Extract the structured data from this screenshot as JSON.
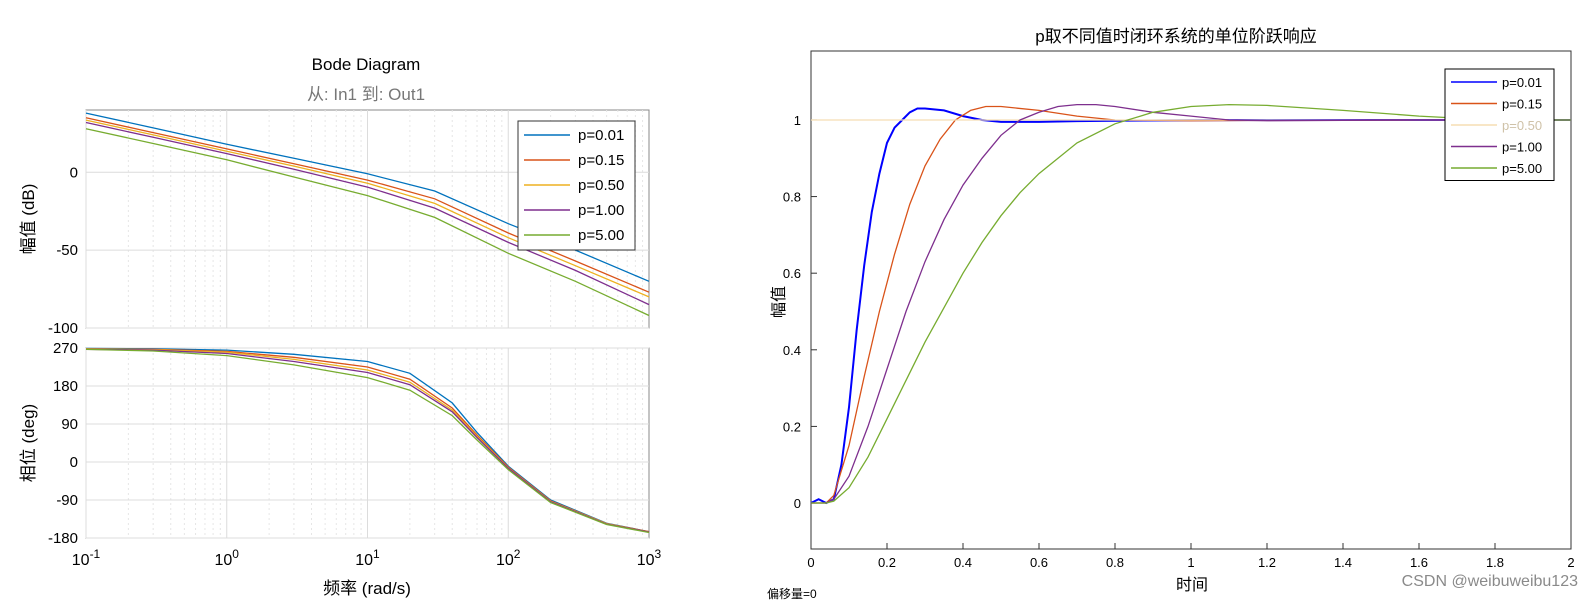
{
  "bode": {
    "title": "Bode Diagram",
    "subtitle": "从: In1  到: Out1",
    "xlabel": "频率  (rad/s)",
    "mag_ylabel": "幅值 (dB)",
    "phase_ylabel": "相位 (deg)",
    "x_ticks": [
      {
        "base": "10",
        "exp": "-1"
      },
      {
        "base": "10",
        "exp": "0"
      },
      {
        "base": "10",
        "exp": "1"
      },
      {
        "base": "10",
        "exp": "2"
      },
      {
        "base": "10",
        "exp": "3"
      }
    ]
  },
  "step": {
    "title": "p取不同值时闭环系统的单位阶跃响应",
    "xlabel": "时间",
    "ylabel": "幅值",
    "note": "偏移量=0"
  },
  "watermark": "CSDN @weibuweibu123",
  "chart_data": [
    {
      "type": "line",
      "title": "Bode Diagram",
      "subtitle": "从: In1  到: Out1",
      "panel": "magnitude",
      "xlabel": "频率  (rad/s)",
      "ylabel": "幅值 (dB)",
      "xscale": "log",
      "xlim": [
        0.1,
        1000
      ],
      "ylim": [
        -100,
        40
      ],
      "yticks": [
        -100,
        -50,
        0
      ],
      "grid": true,
      "legend_position": "top-right",
      "series": [
        {
          "name": "p=0.01",
          "color": "#0072BD",
          "x": [
            0.1,
            0.3,
            1,
            3,
            10,
            30,
            100,
            300,
            1000
          ],
          "y": [
            38,
            28.5,
            18,
            9,
            -1,
            -12,
            -33,
            -50,
            -70
          ]
        },
        {
          "name": "p=0.15",
          "color": "#D95319",
          "x": [
            0.1,
            0.3,
            1,
            3,
            10,
            30,
            100,
            300,
            1000
          ],
          "y": [
            35,
            25.5,
            15,
            5.5,
            -5,
            -17,
            -39,
            -57,
            -77
          ]
        },
        {
          "name": "p=0.50",
          "color": "#EDB120",
          "x": [
            0.1,
            0.3,
            1,
            3,
            10,
            30,
            100,
            300,
            1000
          ],
          "y": [
            33.5,
            24,
            13.5,
            4,
            -7,
            -20,
            -42,
            -60,
            -80
          ]
        },
        {
          "name": "p=1.00",
          "color": "#7E2F8E",
          "x": [
            0.1,
            0.3,
            1,
            3,
            10,
            30,
            100,
            300,
            1000
          ],
          "y": [
            32,
            22.5,
            12,
            2,
            -9.5,
            -23,
            -45,
            -63,
            -85
          ]
        },
        {
          "name": "p=5.00",
          "color": "#77AC30",
          "x": [
            0.1,
            0.3,
            1,
            3,
            10,
            30,
            100,
            300,
            1000
          ],
          "y": [
            28,
            18.5,
            8,
            -3,
            -15,
            -29,
            -52,
            -70,
            -92
          ]
        }
      ]
    },
    {
      "type": "line",
      "panel": "phase",
      "xlabel": "频率  (rad/s)",
      "ylabel": "相位 (deg)",
      "xscale": "log",
      "xlim": [
        0.1,
        1000
      ],
      "ylim": [
        -180,
        270
      ],
      "yticks": [
        -180,
        -90,
        0,
        90,
        180,
        270
      ],
      "grid": true,
      "series": [
        {
          "name": "p=0.01",
          "color": "#0072BD",
          "x": [
            0.1,
            0.3,
            1,
            3,
            10,
            20,
            40,
            60,
            100,
            200,
            500,
            1000
          ],
          "y": [
            269,
            268,
            265,
            255,
            238,
            210,
            140,
            70,
            -10,
            -90,
            -145,
            -165
          ]
        },
        {
          "name": "p=0.15",
          "color": "#D95319",
          "x": [
            0.1,
            0.3,
            1,
            3,
            10,
            20,
            40,
            60,
            100,
            200,
            500,
            1000
          ],
          "y": [
            268,
            267,
            262,
            248,
            225,
            196,
            128,
            64,
            -12,
            -92,
            -146,
            -165
          ]
        },
        {
          "name": "p=0.50",
          "color": "#EDB120",
          "x": [
            0.1,
            0.3,
            1,
            3,
            10,
            20,
            40,
            60,
            100,
            200,
            500,
            1000
          ],
          "y": [
            268,
            266,
            260,
            243,
            218,
            189,
            123,
            61,
            -14,
            -93,
            -146,
            -166
          ]
        },
        {
          "name": "p=1.00",
          "color": "#7E2F8E",
          "x": [
            0.1,
            0.3,
            1,
            3,
            10,
            20,
            40,
            60,
            100,
            200,
            500,
            1000
          ],
          "y": [
            267,
            265,
            257,
            238,
            212,
            183,
            119,
            58,
            -15,
            -94,
            -147,
            -166
          ]
        },
        {
          "name": "p=5.00",
          "color": "#77AC30",
          "x": [
            0.1,
            0.3,
            1,
            3,
            10,
            20,
            40,
            60,
            100,
            200,
            500,
            1000
          ],
          "y": [
            267,
            263,
            252,
            230,
            200,
            170,
            110,
            52,
            -18,
            -96,
            -148,
            -167
          ]
        }
      ]
    },
    {
      "type": "line",
      "title": "p取不同值时闭环系统的单位阶跃响应",
      "xlabel": "时间",
      "ylabel": "幅值",
      "xlim": [
        0,
        2
      ],
      "ylim": [
        -0.12,
        1.18
      ],
      "xticks": [
        0,
        0.2,
        0.4,
        0.6,
        0.8,
        1,
        1.2,
        1.4,
        1.6,
        1.8,
        2
      ],
      "yticks": [
        0,
        0.2,
        0.4,
        0.6,
        0.8,
        1
      ],
      "grid": false,
      "legend_position": "top-right",
      "series": [
        {
          "name": "p=0.01",
          "color": "#0000FF",
          "x": [
            0,
            0.02,
            0.04,
            0.06,
            0.08,
            0.1,
            0.12,
            0.14,
            0.16,
            0.18,
            0.2,
            0.22,
            0.24,
            0.26,
            0.28,
            0.3,
            0.35,
            0.4,
            0.45,
            0.5,
            0.55,
            0.6,
            0.7,
            0.8,
            1,
            1.2,
            1.6,
            2
          ],
          "y": [
            0,
            0.01,
            0,
            0.01,
            0.1,
            0.25,
            0.45,
            0.62,
            0.76,
            0.86,
            0.94,
            0.98,
            1.0,
            1.02,
            1.03,
            1.03,
            1.025,
            1.01,
            1.0,
            0.995,
            0.995,
            0.995,
            0.997,
            0.998,
            0.999,
            1.0,
            1.0,
            1.0
          ]
        },
        {
          "name": "p=0.15",
          "color": "#D95319",
          "x": [
            0,
            0.04,
            0.06,
            0.1,
            0.14,
            0.18,
            0.22,
            0.26,
            0.3,
            0.34,
            0.38,
            0.42,
            0.46,
            0.5,
            0.6,
            0.7,
            0.8,
            1,
            1.2,
            1.6,
            2
          ],
          "y": [
            0,
            0,
            0.02,
            0.15,
            0.33,
            0.5,
            0.65,
            0.78,
            0.88,
            0.95,
            1.0,
            1.025,
            1.035,
            1.035,
            1.025,
            1.01,
            1.0,
            0.998,
            0.999,
            1.0,
            1.0
          ]
        },
        {
          "name": "p=0.50",
          "color": "#F5DEB3",
          "x": [
            0,
            0.2,
            0.5,
            1,
            1.6,
            2
          ],
          "y": [
            1.0,
            1.0,
            1.0,
            1.0,
            1.0,
            1.0
          ]
        },
        {
          "name": "p=1.00",
          "color": "#7E2F8E",
          "x": [
            0,
            0.04,
            0.06,
            0.1,
            0.15,
            0.2,
            0.25,
            0.3,
            0.35,
            0.4,
            0.45,
            0.5,
            0.55,
            0.6,
            0.65,
            0.7,
            0.75,
            0.8,
            0.9,
            1,
            1.1,
            1.2,
            1.4,
            1.6,
            2
          ],
          "y": [
            0,
            0,
            0.01,
            0.07,
            0.2,
            0.35,
            0.5,
            0.63,
            0.74,
            0.83,
            0.9,
            0.96,
            1.0,
            1.02,
            1.035,
            1.04,
            1.04,
            1.035,
            1.02,
            1.01,
            1.0,
            0.998,
            0.999,
            1.0,
            1.0
          ]
        },
        {
          "name": "p=5.00",
          "color": "#77AC30",
          "x": [
            0,
            0.04,
            0.06,
            0.1,
            0.15,
            0.2,
            0.25,
            0.3,
            0.35,
            0.4,
            0.45,
            0.5,
            0.55,
            0.6,
            0.7,
            0.8,
            0.9,
            1,
            1.1,
            1.2,
            1.4,
            1.6,
            1.8,
            2
          ],
          "y": [
            0,
            0,
            0.005,
            0.04,
            0.12,
            0.22,
            0.32,
            0.42,
            0.51,
            0.6,
            0.68,
            0.75,
            0.81,
            0.86,
            0.94,
            0.99,
            1.02,
            1.035,
            1.04,
            1.038,
            1.025,
            1.01,
            1.0,
            1.0
          ]
        }
      ]
    }
  ]
}
